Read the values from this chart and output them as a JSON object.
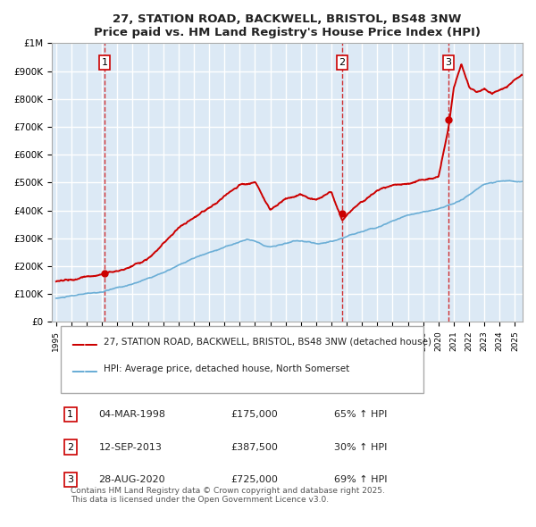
{
  "title": "27, STATION ROAD, BACKWELL, BRISTOL, BS48 3NW",
  "subtitle": "Price paid vs. HM Land Registry's House Price Index (HPI)",
  "background_color": "#dce9f5",
  "plot_bg_color": "#dce9f5",
  "red_line_label": "27, STATION ROAD, BACKWELL, BRISTOL, BS48 3NW (detached house)",
  "blue_line_label": "HPI: Average price, detached house, North Somerset",
  "transactions": [
    {
      "num": 1,
      "date": "04-MAR-1998",
      "price": 175000,
      "hpi_pct": "65% ↑ HPI",
      "year": 1998.17
    },
    {
      "num": 2,
      "date": "12-SEP-2013",
      "price": 387500,
      "hpi_pct": "30% ↑ HPI",
      "year": 2013.7
    },
    {
      "num": 3,
      "date": "28-AUG-2020",
      "price": 725000,
      "hpi_pct": "69% ↑ HPI",
      "year": 2020.66
    }
  ],
  "footer": "Contains HM Land Registry data © Crown copyright and database right 2025.\nThis data is licensed under the Open Government Licence v3.0.",
  "ylim": [
    0,
    1000000
  ],
  "xlim_start": 1995,
  "xlim_end": 2025.5
}
